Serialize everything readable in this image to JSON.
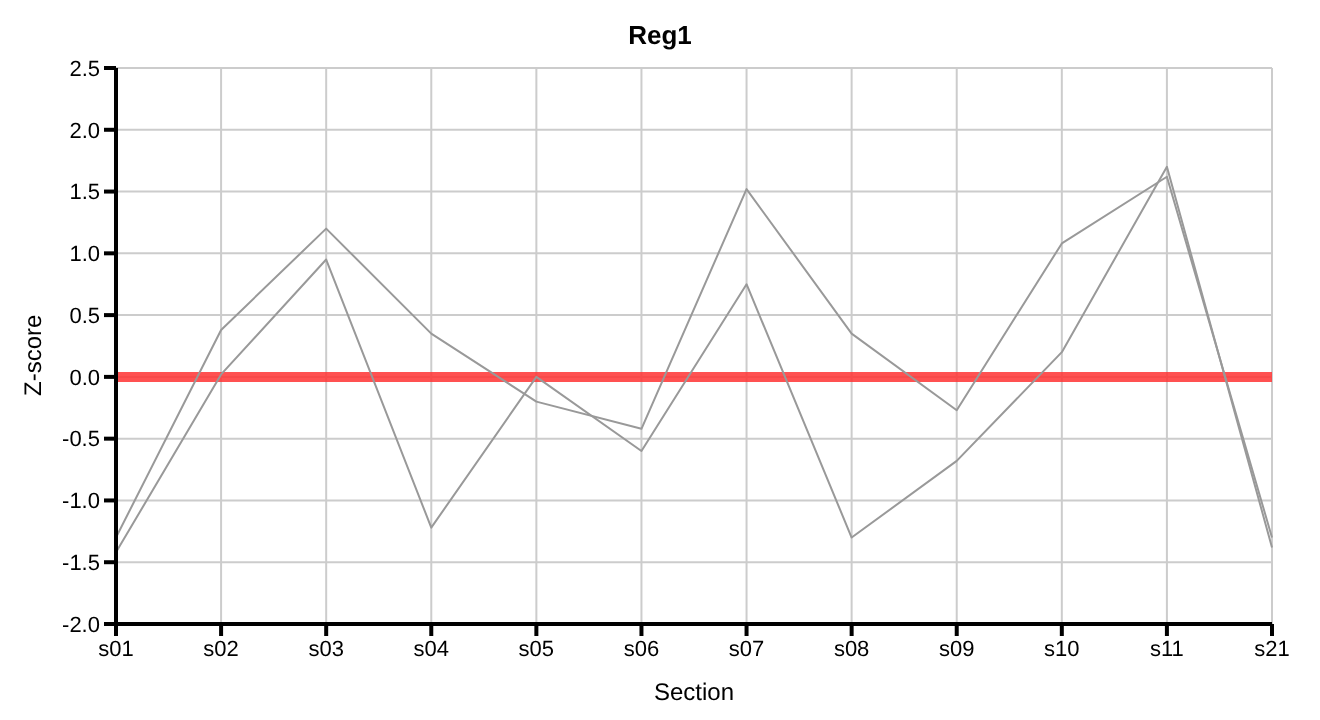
{
  "chart_data": {
    "type": "line",
    "title": "Reg1",
    "xlabel": "Section",
    "ylabel": "Z-score",
    "categories": [
      "s01",
      "s02",
      "s03",
      "s04",
      "s05",
      "s06",
      "s07",
      "s08",
      "s09",
      "s10",
      "s11",
      "s21"
    ],
    "series": [
      {
        "color": "#999999",
        "values": [
          -1.3,
          0.38,
          1.2,
          0.35,
          -0.2,
          -0.42,
          1.52,
          0.35,
          -0.27,
          1.08,
          1.62,
          -1.3
        ]
      },
      {
        "color": "#999999",
        "values": [
          -1.42,
          0.02,
          0.95,
          -1.22,
          0.0,
          -0.6,
          0.75,
          -1.3,
          -0.68,
          0.2,
          1.7,
          -1.38
        ]
      }
    ],
    "ylim": [
      -2.0,
      2.5
    ],
    "yticks": [
      {
        "value": -2,
        "label": "-2.0"
      },
      {
        "value": -1.5,
        "label": "-1.5"
      },
      {
        "value": -1,
        "label": "-1.0"
      },
      {
        "value": -0.5,
        "label": "-0.5"
      },
      {
        "value": 0,
        "label": "0.0"
      },
      {
        "value": 0.5,
        "label": "0.5"
      },
      {
        "value": 1,
        "label": "1.0"
      },
      {
        "value": 1.5,
        "label": "1.5"
      },
      {
        "value": 2,
        "label": "2.0"
      },
      {
        "value": 2.5,
        "label": "2.5"
      }
    ],
    "grid": true,
    "marker": "none",
    "line_style": "solid",
    "ref_lines": [
      {
        "axis": "y",
        "value": 0,
        "color": "#ff3333"
      }
    ]
  }
}
